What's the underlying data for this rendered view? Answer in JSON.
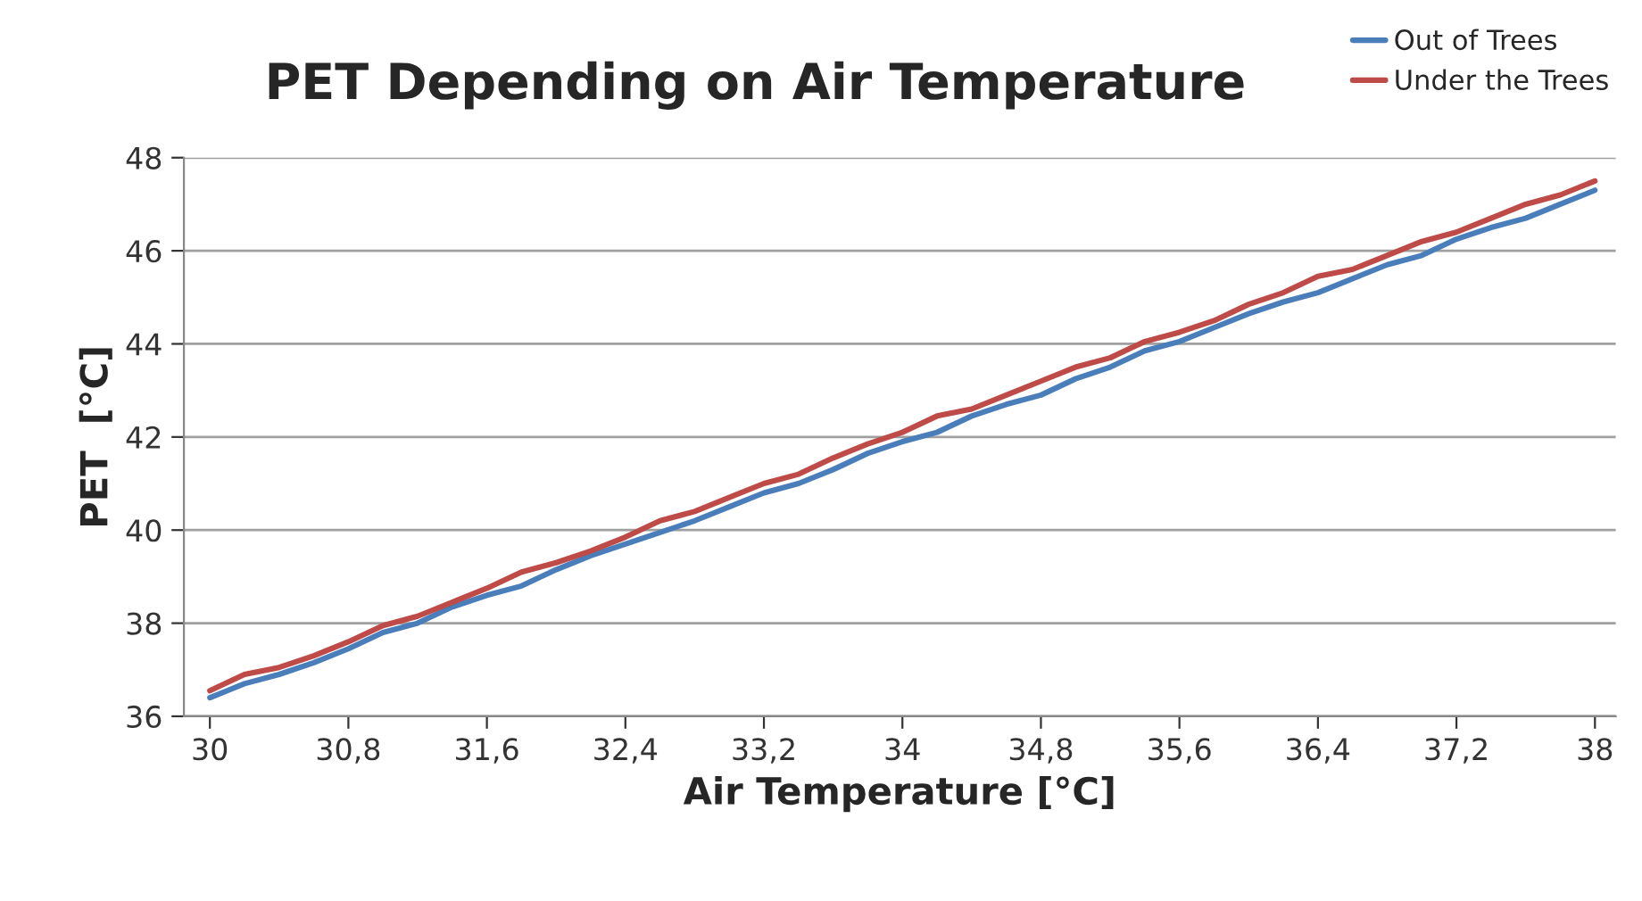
{
  "chart_data": {
    "type": "line",
    "title": "PET Depending on Air Temperature",
    "xlabel": "Air Temperature [°C]",
    "ylabel": "PET  [°C]",
    "x": [
      30,
      30.2,
      30.4,
      30.6,
      30.8,
      31,
      31.2,
      31.4,
      31.6,
      31.8,
      32,
      32.2,
      32.4,
      32.6,
      32.8,
      33,
      33.2,
      33.4,
      33.6,
      33.8,
      34,
      34.2,
      34.4,
      34.6,
      34.8,
      35,
      35.2,
      35.4,
      35.6,
      35.8,
      36,
      36.2,
      36.4,
      36.6,
      36.8,
      37,
      37.2,
      37.4,
      37.6,
      37.8,
      38
    ],
    "series": [
      {
        "name": "Out of Trees",
        "color": "#4a7ebb",
        "values": [
          36.4,
          36.7,
          36.9,
          37.15,
          37.45,
          37.8,
          38.0,
          38.35,
          38.6,
          38.8,
          39.15,
          39.45,
          39.7,
          39.95,
          40.2,
          40.5,
          40.8,
          41.0,
          41.3,
          41.65,
          41.9,
          42.1,
          42.45,
          42.7,
          42.9,
          43.25,
          43.5,
          43.85,
          44.05,
          44.35,
          44.65,
          44.9,
          45.1,
          45.4,
          45.7,
          45.9,
          46.25,
          46.5,
          46.7,
          47.0,
          47.3
        ]
      },
      {
        "name": "Under the Trees",
        "color": "#be4b48",
        "values": [
          36.55,
          36.9,
          37.05,
          37.3,
          37.6,
          37.95,
          38.15,
          38.45,
          38.75,
          39.1,
          39.3,
          39.55,
          39.85,
          40.2,
          40.4,
          40.7,
          41.0,
          41.2,
          41.55,
          41.85,
          42.1,
          42.45,
          42.6,
          42.9,
          43.2,
          43.5,
          43.7,
          44.05,
          44.25,
          44.5,
          44.85,
          45.1,
          45.45,
          45.6,
          45.9,
          46.2,
          46.4,
          46.7,
          47.0,
          47.2,
          47.5
        ]
      }
    ],
    "xlim": [
      29.85,
      38.12
    ],
    "ylim": [
      36,
      48
    ],
    "yticks": [
      36,
      38,
      40,
      42,
      44,
      46,
      48
    ],
    "xticks": [
      30,
      {
        "value": 30.8,
        "label": "30,8"
      },
      {
        "value": 31.6,
        "label": "31,6"
      },
      {
        "value": 32.4,
        "label": "32,4"
      },
      {
        "value": 33.2,
        "label": "33,2"
      },
      34,
      {
        "value": 34.8,
        "label": "34,8"
      },
      {
        "value": 35.6,
        "label": "35,6"
      },
      {
        "value": 36.4,
        "label": "36,4"
      },
      {
        "value": 37.2,
        "label": "37,2"
      },
      38
    ],
    "grid": "y",
    "legend": "top right",
    "marker": "none",
    "line_style": "solid"
  }
}
